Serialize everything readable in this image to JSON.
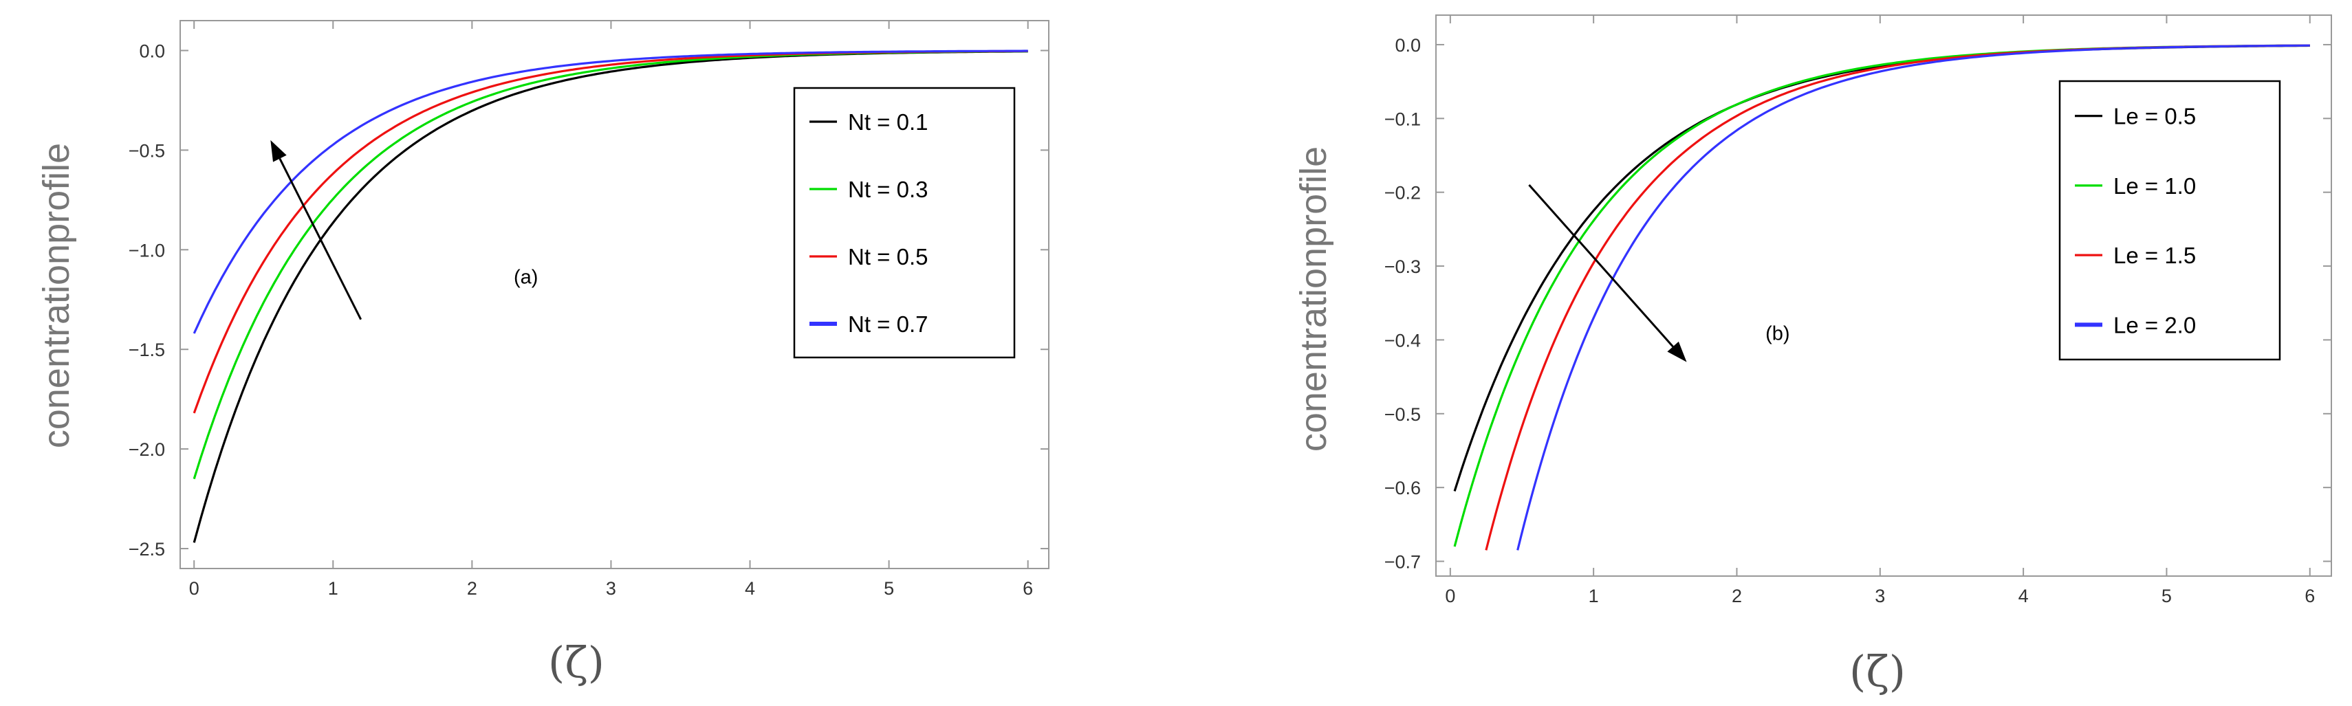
{
  "chart_data": [
    {
      "type": "line",
      "annotation": "(a)",
      "xlabel": "(ζ)",
      "ylabel": "conentrationprofile",
      "xlim": [
        -0.1,
        6.15
      ],
      "ylim": [
        -2.6,
        0.15
      ],
      "xticks": [
        0,
        1,
        2,
        3,
        4,
        5,
        6
      ],
      "yticks": [
        -2.5,
        -2.0,
        -1.5,
        -1.0,
        -0.5,
        0.0
      ],
      "ytick_labels": [
        "-2.5",
        "-2.0",
        "-1.5",
        "-1.0",
        "-0.5",
        "0.0"
      ],
      "xmax": 6,
      "legend_position": "right-center",
      "series": [
        {
          "name": "Nt = 0.1",
          "color": "#000000",
          "x0": 0.0,
          "y0": -2.47,
          "decay": 1.05
        },
        {
          "name": "Nt = 0.3",
          "color": "#00dd00",
          "x0": 0.0,
          "y0": -2.15,
          "decay": 1.06
        },
        {
          "name": "Nt = 0.5",
          "color": "#ee1111",
          "x0": 0.0,
          "y0": -1.82,
          "decay": 1.08
        },
        {
          "name": "Nt = 0.7",
          "color": "#3333ff",
          "x0": 0.0,
          "y0": -1.42,
          "decay": 1.1
        }
      ],
      "arrow": {
        "from": [
          1.2,
          -1.35
        ],
        "to": [
          0.55,
          -0.45
        ]
      },
      "annotation_pos": [
        2.3,
        -1.17
      ]
    },
    {
      "type": "line",
      "annotation": "(b)",
      "xlabel": "(ζ)",
      "ylabel": "conentrationprofile",
      "xlim": [
        -0.1,
        6.15
      ],
      "ylim": [
        -0.72,
        0.04
      ],
      "xticks": [
        0,
        1,
        2,
        3,
        4,
        5,
        6
      ],
      "yticks": [
        -0.7,
        -0.6,
        -0.5,
        -0.4,
        -0.3,
        -0.2,
        -0.1,
        0.0
      ],
      "ytick_labels": [
        "-0.7",
        "-0.6",
        "-0.5",
        "-0.4",
        "-0.3",
        "-0.2",
        "-0.1",
        "0.0"
      ],
      "xmax": 6,
      "legend_position": "right-center",
      "series": [
        {
          "name": "Le = 0.5",
          "color": "#000000",
          "x0": 0.03,
          "y0": -0.605,
          "decay": 1.02
        },
        {
          "name": "Le =  1.0",
          "color": "#00dd00",
          "x0": 0.03,
          "y0": -0.68,
          "decay": 1.08
        },
        {
          "name": "Le = 1.5",
          "color": "#ee1111",
          "x0": 0.25,
          "y0": -0.685,
          "decay": 1.12
        },
        {
          "name": "Le =  2.0",
          "color": "#3333ff",
          "x0": 0.47,
          "y0": -0.685,
          "decay": 1.16
        }
      ],
      "arrow": {
        "from": [
          0.55,
          -0.19
        ],
        "to": [
          1.65,
          -0.43
        ]
      },
      "annotation_pos": [
        2.2,
        -0.4
      ]
    }
  ]
}
